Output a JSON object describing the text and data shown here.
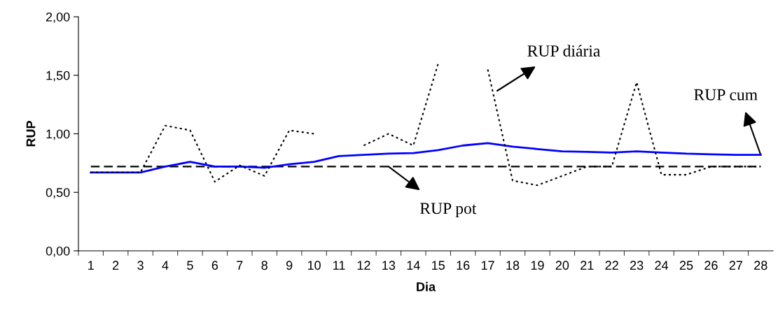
{
  "chart_data": {
    "type": "line",
    "xlabel": "Dia",
    "ylabel": "RUP",
    "categories": [
      "1",
      "2",
      "3",
      "4",
      "5",
      "6",
      "7",
      "8",
      "9",
      "10",
      "11",
      "12",
      "13",
      "14",
      "15",
      "16",
      "17",
      "18",
      "19",
      "20",
      "21",
      "22",
      "23",
      "24",
      "25",
      "26",
      "27",
      "28"
    ],
    "series": [
      {
        "color": "#000000",
        "line_style": "dotted",
        "values": [
          0.67,
          0.67,
          0.67,
          1.07,
          1.03,
          0.59,
          0.73,
          0.64,
          1.03,
          1.0,
          null,
          0.9,
          1.0,
          0.9,
          1.6,
          null,
          1.55,
          0.6,
          0.56,
          0.64,
          0.72,
          0.72,
          1.44,
          0.65,
          0.65,
          0.72,
          0.72,
          0.72
        ]
      },
      {
        "color": "#0000ff",
        "line_style": "solid",
        "values": [
          0.67,
          0.67,
          0.67,
          0.72,
          0.76,
          0.72,
          0.72,
          0.71,
          0.74,
          0.76,
          0.81,
          0.82,
          0.83,
          0.835,
          0.86,
          0.9,
          0.92,
          0.89,
          0.87,
          0.85,
          0.845,
          0.84,
          0.85,
          0.84,
          0.83,
          0.825,
          0.82,
          0.82
        ]
      },
      {
        "color": "#000000",
        "line_style": "dashed",
        "values": [
          0.72,
          0.72,
          0.72,
          0.72,
          0.72,
          0.72,
          0.72,
          0.72,
          0.72,
          0.72,
          0.72,
          0.72,
          0.72,
          0.72,
          0.72,
          0.72,
          0.72,
          0.72,
          0.72,
          0.72,
          0.72,
          0.72,
          0.72,
          0.72,
          0.72,
          0.72,
          0.72,
          0.72
        ]
      }
    ],
    "annotations": [
      "RUP diária",
      {
        "text": "RUP pot",
        "x": "13",
        "y": 0.72
      },
      {
        "text": "RUP cum",
        "x": "28",
        "y": 0.82
      }
    ],
    "ylim": [
      0,
      2
    ],
    "yticks": [
      {
        "value": 0,
        "label": "0,00"
      },
      {
        "value": 0.5,
        "label": "0,50"
      },
      {
        "value": 1,
        "label": "1,00"
      },
      {
        "value": 1.5,
        "label": "1,50"
      },
      {
        "value": 2,
        "label": "2,00"
      }
    ],
    "grid": false,
    "legend": false,
    "marker": "none"
  }
}
